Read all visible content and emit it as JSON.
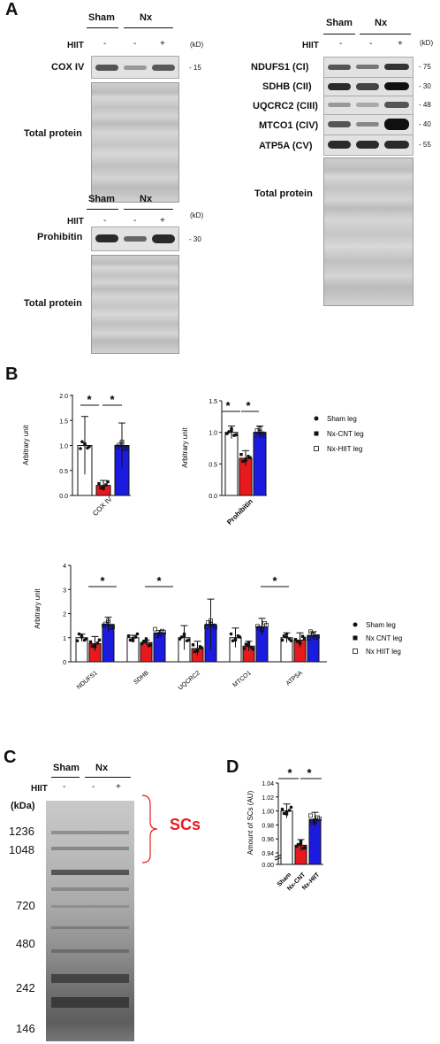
{
  "panel_labels": {
    "a": "A",
    "b": "B",
    "c": "C",
    "d": "D"
  },
  "panelA": {
    "group_sham": "Sham",
    "group_nx": "Nx",
    "hiit_label": "HIIT",
    "hiit_values": [
      "-",
      "-",
      "+"
    ],
    "kd_unit": "(kD)",
    "left": {
      "coxiv": {
        "name": "COX IV",
        "kd": "- 15"
      },
      "prohibitin": {
        "name": "Prohibitin",
        "kd": "- 30"
      },
      "total_protein": "Total protein"
    },
    "right": {
      "blots": [
        {
          "name": "NDUFS1 (CI)",
          "kd": "- 75"
        },
        {
          "name": "SDHB (CII)",
          "kd": "- 30"
        },
        {
          "name": "UQCRC2 (CIII)",
          "kd": "- 48"
        },
        {
          "name": "MTCO1 (CIV)",
          "kd": "- 40"
        },
        {
          "name": "ATP5A (CV)",
          "kd": "- 55"
        }
      ],
      "total_protein": "Total protein"
    }
  },
  "panelB": {
    "legend_top": [
      "Sham leg",
      "Nx-CNT leg",
      "Nx-HIIT leg"
    ],
    "legend_bottom": [
      "Sham leg",
      "Nx CNT leg",
      "Nx HIIT leg"
    ]
  },
  "panelC": {
    "group_sham": "Sham",
    "group_nx": "Nx",
    "hiit_label": "HIIT",
    "hiit_values": [
      "-",
      "-",
      "+"
    ],
    "unit": "(kDa)",
    "markers": [
      "1236",
      "1048",
      "720",
      "480",
      "242",
      "146"
    ],
    "sc_label": "SCs"
  },
  "colors": {
    "sham": "#ffffff",
    "nx_cnt": "#e8191c",
    "nx_hiit": "#1b1be0",
    "sc_text": "#e8191c"
  },
  "chart_data": [
    {
      "type": "bar",
      "categories": [
        "COX IV"
      ],
      "ylabel": "Arbitrary unit",
      "ylim": [
        0,
        2.0
      ],
      "yticks": [
        "0.0",
        "0.5",
        "1.0",
        "1.5",
        "2.0"
      ],
      "series": [
        {
          "name": "Sham leg",
          "values": [
            1.0
          ],
          "err": [
            0.58
          ]
        },
        {
          "name": "Nx-CNT leg",
          "values": [
            0.2
          ],
          "err": [
            0.1
          ]
        },
        {
          "name": "Nx-HIIT leg",
          "values": [
            1.0
          ],
          "err": [
            0.45
          ]
        }
      ],
      "significance": [
        "*",
        "*"
      ]
    },
    {
      "type": "bar",
      "categories": [
        "Prohibitin"
      ],
      "ylabel": "Arbitrary unit",
      "ylim": [
        0,
        1.5
      ],
      "yticks": [
        "0.0",
        "0.5",
        "1.0",
        "1.5"
      ],
      "series": [
        {
          "name": "Sham leg",
          "values": [
            1.0
          ],
          "err": [
            0.1
          ]
        },
        {
          "name": "Nx-CNT leg",
          "values": [
            0.59
          ],
          "err": [
            0.12
          ]
        },
        {
          "name": "Nx-HIIT leg",
          "values": [
            1.0
          ],
          "err": [
            0.1
          ]
        }
      ],
      "significance": [
        "*",
        "*"
      ]
    },
    {
      "type": "bar",
      "categories": [
        "NDUFS1",
        "SDHB",
        "UQCRC2",
        "MTCO1",
        "ATP5A"
      ],
      "ylabel": "Arbitrary unit",
      "ylim": [
        0,
        4
      ],
      "yticks": [
        "0",
        "1",
        "2",
        "3",
        "4"
      ],
      "series": [
        {
          "name": "Sham leg",
          "values": [
            1.0,
            1.0,
            1.0,
            1.0,
            1.0
          ],
          "err": [
            0.15,
            0.1,
            0.5,
            0.4,
            0.2
          ]
        },
        {
          "name": "Nx CNT leg",
          "values": [
            0.75,
            0.8,
            0.55,
            0.65,
            0.9
          ],
          "err": [
            0.3,
            0.1,
            0.3,
            0.2,
            0.3
          ]
        },
        {
          "name": "Nx HIIT leg",
          "values": [
            1.55,
            1.2,
            1.55,
            1.45,
            1.1
          ],
          "err": [
            0.3,
            0.1,
            1.05,
            0.35,
            0.15
          ]
        }
      ],
      "significance_categories": [
        "NDUFS1",
        "SDHB",
        "MTCO1"
      ]
    },
    {
      "type": "bar",
      "categories": [
        "Sham",
        "Nx-CNT",
        "Nx-HIIT"
      ],
      "ylabel": "Amount of SCs (AU)",
      "ylim": [
        0.92,
        1.04
      ],
      "yticks": [
        "0.00",
        "0.94",
        "0.96",
        "0.98",
        "1.00",
        "1.02",
        "1.04"
      ],
      "axis_break": true,
      "values": [
        1.0,
        0.951,
        0.988
      ],
      "err": [
        0.01,
        0.008,
        0.01
      ],
      "significance": [
        "*",
        "*"
      ]
    }
  ]
}
